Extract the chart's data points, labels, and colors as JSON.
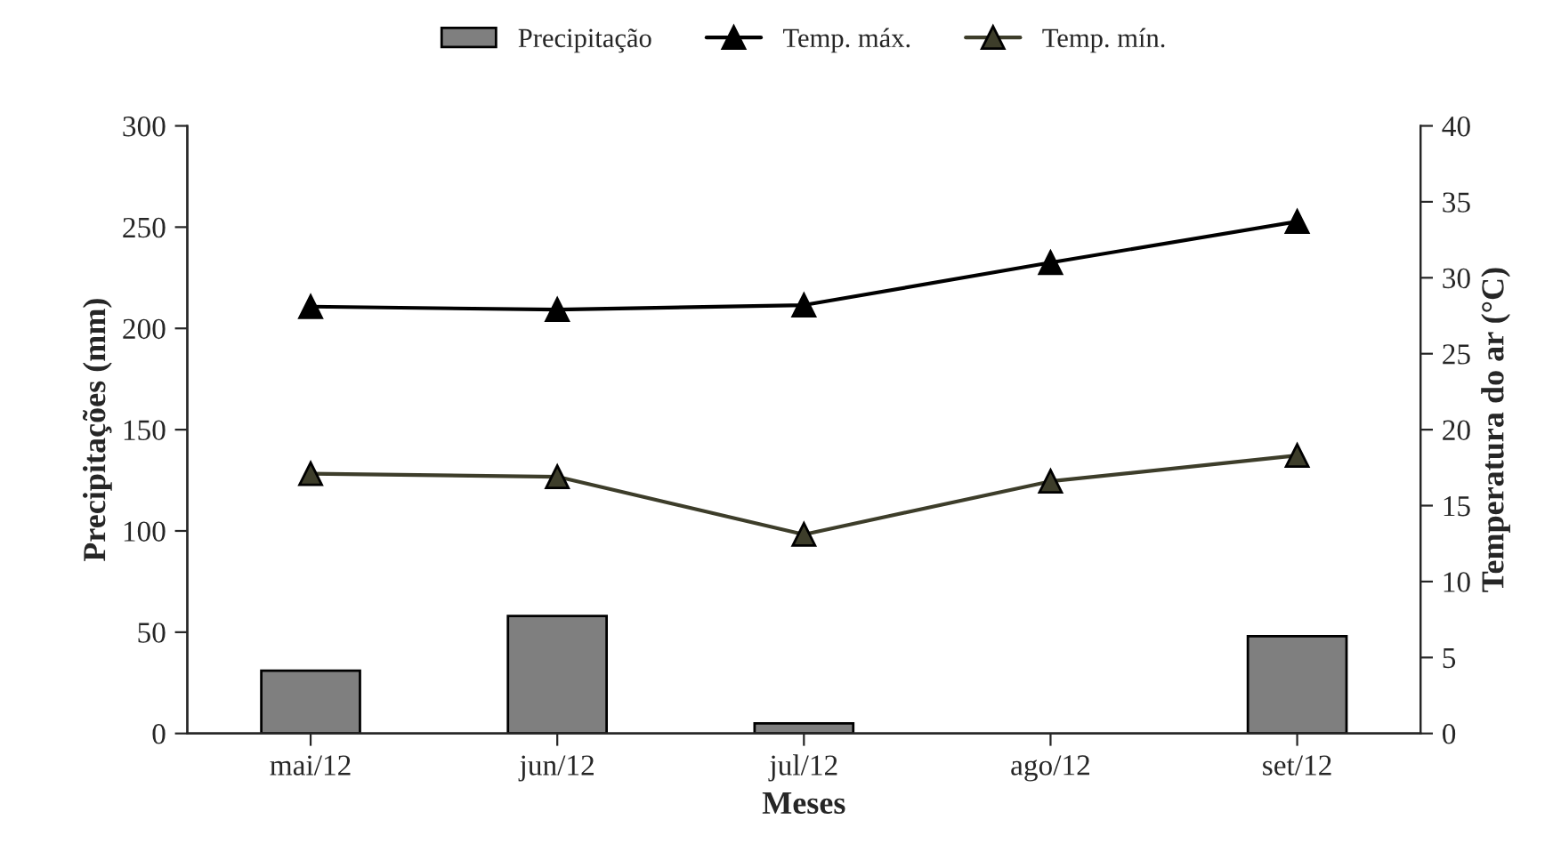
{
  "chart_data": {
    "type": "bar",
    "categories": [
      "mai/12",
      "jun/12",
      "jul/12",
      "ago/12",
      "set/12"
    ],
    "xlabel": "Meses",
    "ylabel": "Precipitações (mm)",
    "y2label": "Temperatura do ar (°C)",
    "series": [
      {
        "name": "Precipitação",
        "color": "#7f7f7f",
        "values": [
          31,
          58,
          5,
          null,
          48
        ]
      },
      {
        "name": "Temp. máx.",
        "type": "line",
        "axis": "y2",
        "color": "#000000",
        "marker": "triangle",
        "values": [
          28.1,
          27.9,
          28.2,
          31.0,
          33.7
        ]
      },
      {
        "name": "Temp. mín.",
        "type": "line",
        "axis": "y2",
        "color": "#3d3d2a",
        "marker": "triangle",
        "values": [
          17.1,
          16.9,
          13.1,
          16.6,
          18.3
        ]
      }
    ],
    "ylim": [
      0,
      300
    ],
    "yticks": [
      0,
      50,
      100,
      150,
      200,
      250,
      300
    ],
    "y2lim": [
      0,
      40
    ],
    "y2ticks": [
      0,
      5,
      10,
      15,
      20,
      25,
      30,
      35,
      40
    ],
    "legend": "top",
    "grid": false
  }
}
